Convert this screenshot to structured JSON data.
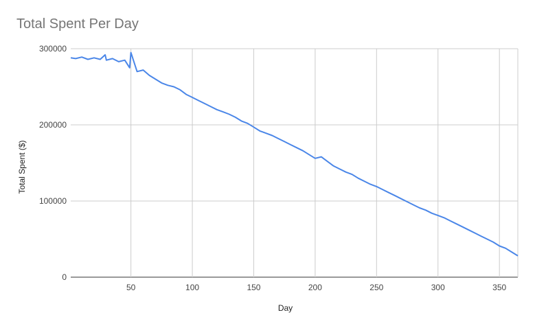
{
  "chart_data": {
    "type": "line",
    "title": "Total Spent Per Day",
    "xlabel": "Day",
    "ylabel": "Total Spent ($)",
    "xlim": [
      1,
      365
    ],
    "ylim": [
      0,
      300000
    ],
    "x_ticks": [
      50,
      100,
      150,
      200,
      250,
      300,
      350
    ],
    "y_ticks": [
      0,
      100000,
      200000,
      300000
    ],
    "x_tick_labels": [
      "50",
      "100",
      "150",
      "200",
      "250",
      "300",
      "350"
    ],
    "y_tick_labels": [
      "0",
      "100000",
      "200000",
      "300000"
    ],
    "grid": true,
    "line_color": "#4a86e8",
    "series": [
      {
        "x": [
          1,
          5,
          10,
          15,
          20,
          25,
          29,
          30,
          35,
          40,
          45,
          49,
          50,
          55,
          60,
          65,
          70,
          75,
          80,
          85,
          90,
          95,
          100,
          105,
          110,
          115,
          120,
          125,
          130,
          135,
          140,
          145,
          150,
          155,
          160,
          165,
          170,
          175,
          180,
          185,
          190,
          195,
          200,
          205,
          210,
          215,
          220,
          225,
          230,
          235,
          240,
          245,
          250,
          255,
          260,
          265,
          270,
          275,
          280,
          285,
          290,
          295,
          300,
          305,
          310,
          315,
          320,
          325,
          330,
          335,
          340,
          345,
          350,
          355,
          360,
          365
        ],
        "values": [
          288000,
          287000,
          289000,
          286000,
          288000,
          286000,
          292000,
          285000,
          287000,
          283000,
          285000,
          275000,
          295000,
          270000,
          272000,
          265000,
          260000,
          255000,
          252000,
          250000,
          246000,
          240000,
          236000,
          232000,
          228000,
          224000,
          220000,
          217000,
          214000,
          210000,
          205000,
          202000,
          197000,
          192000,
          189000,
          186000,
          182000,
          178000,
          174000,
          170000,
          166000,
          161000,
          156000,
          158000,
          152000,
          146000,
          142000,
          138000,
          135000,
          130000,
          126000,
          122000,
          119000,
          115000,
          111000,
          107000,
          103000,
          99000,
          95000,
          91000,
          88000,
          84000,
          81000,
          78000,
          74000,
          70000,
          66000,
          62000,
          58000,
          54000,
          50000,
          46000,
          41000,
          38000,
          33000,
          28000
        ]
      }
    ]
  }
}
